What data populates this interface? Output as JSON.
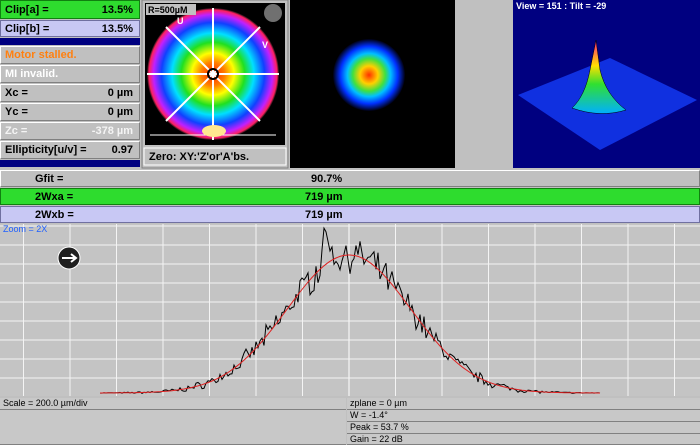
{
  "status_rows": [
    {
      "label": "Clip[a] =",
      "value": "13.5%"
    },
    {
      "label": "Clip[b] =",
      "value": "13.5%"
    }
  ],
  "messages": [
    "Motor stalled.",
    "MI invalid."
  ],
  "centroid_rows": [
    {
      "label": "Xc =",
      "value": "0 µm"
    },
    {
      "label": "Yc =",
      "value": "0 µm"
    },
    {
      "label": "Zc =",
      "value": "-378 µm"
    },
    {
      "label": "Ellipticity[u/v] =",
      "value": "0.97"
    }
  ],
  "beam_map": {
    "radius_label": "R=500µM",
    "axis_u": "U",
    "axis_v": "V",
    "zero_mode": "Zero: XY:'Z'or'A'bs."
  },
  "view_3d": {
    "label": "View = 151 : Tilt = -29"
  },
  "fit_rows": [
    {
      "label": "Gfit =",
      "value": "90.7%"
    },
    {
      "label": "2Wxa =",
      "value": "719 µm"
    },
    {
      "label": "2Wxb =",
      "value": "719 µm"
    }
  ],
  "profile": {
    "zoom_label": "Zoom = 2X",
    "scale": "Scale = 200.0 µm/div",
    "info": [
      "zplane = 0 µm",
      "W = -1.4°",
      "Peak = 53.7 %",
      "Gain = 22 dB"
    ]
  }
}
